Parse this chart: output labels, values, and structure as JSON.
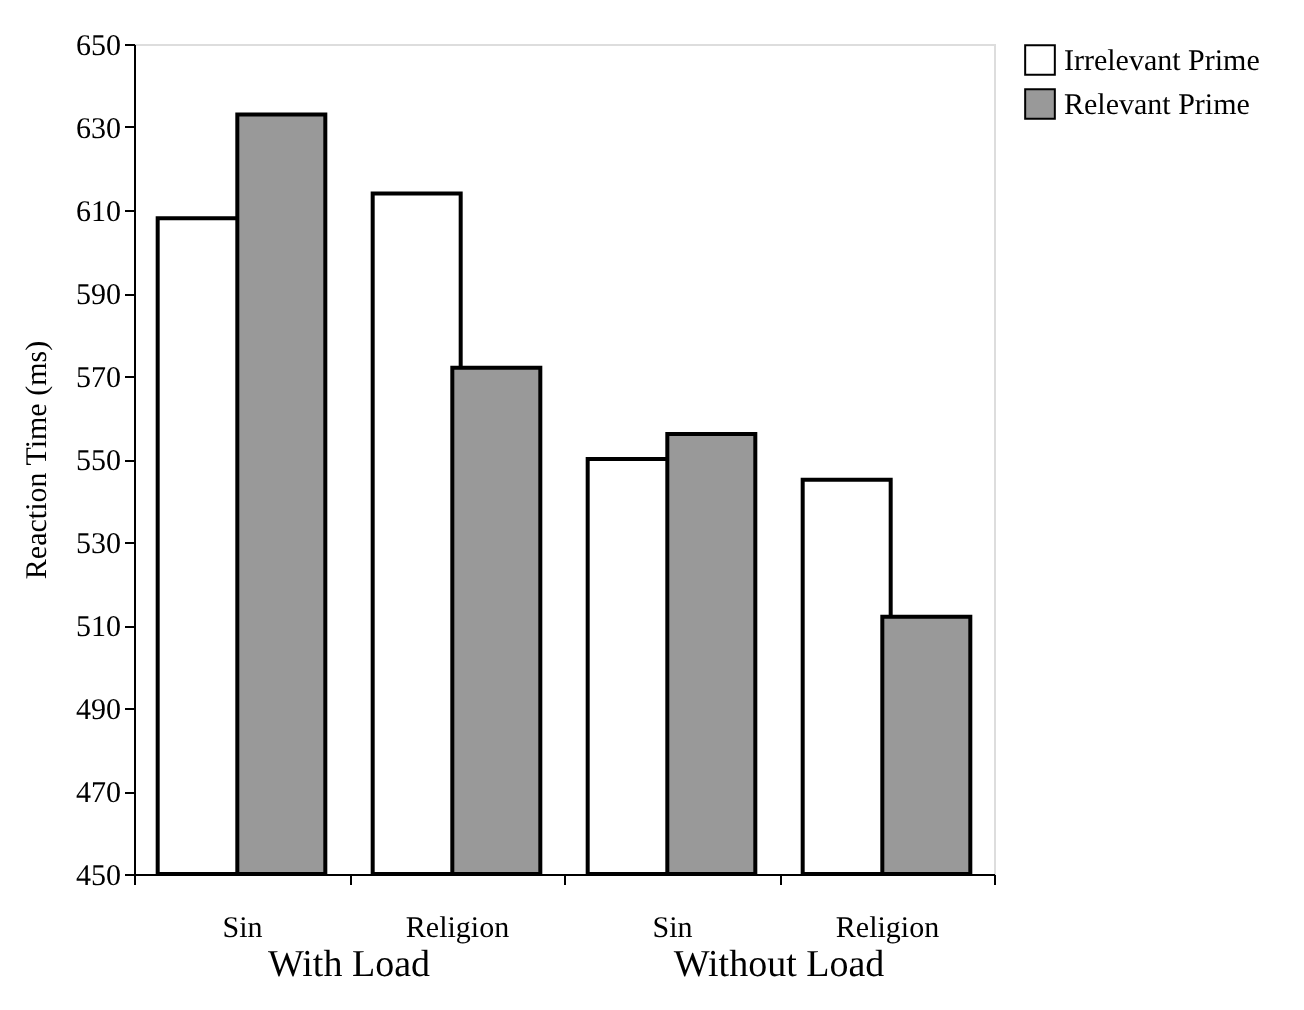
{
  "chart_data": {
    "type": "bar",
    "categories": [
      "Sin",
      "Religion",
      "Sin",
      "Religion"
    ],
    "series": [
      {
        "name": "Irrelevant Prime",
        "color": "#ffffff",
        "values": [
          608,
          614,
          550,
          545
        ]
      },
      {
        "name": "Relevant Prime",
        "color": "#999999",
        "values": [
          633,
          572,
          556,
          512
        ]
      }
    ],
    "ylabel": "Reaction Time (ms)",
    "annotations": [
      "With Load",
      "Without Load"
    ],
    "ylim": [
      450,
      650
    ],
    "yticks": [
      450,
      470,
      490,
      510,
      530,
      550,
      570,
      590,
      610,
      630,
      650
    ],
    "grid": false,
    "legend": "right"
  }
}
